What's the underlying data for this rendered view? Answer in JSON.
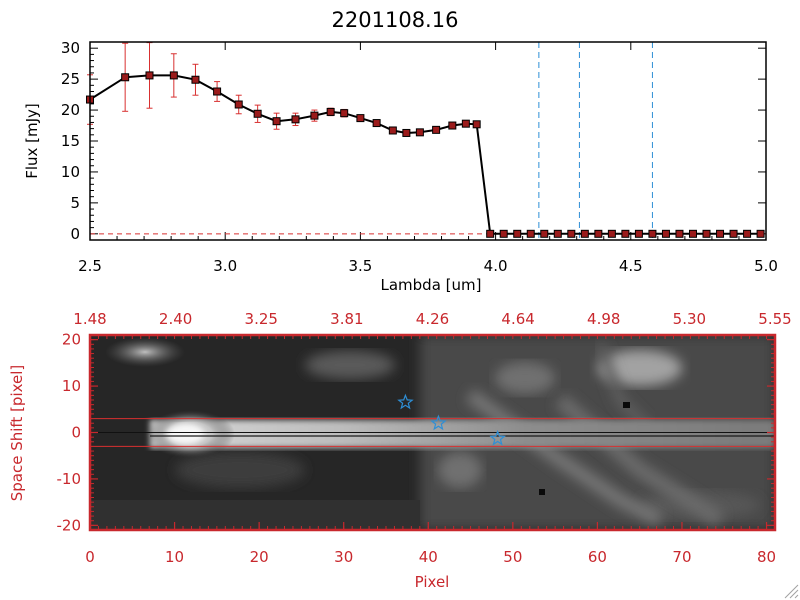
{
  "chart_data": [
    {
      "type": "line",
      "title": "2201108.16",
      "xlabel": "Lambda [um]",
      "ylabel": "Flux [mJy]",
      "xlim": [
        2.5,
        5.0
      ],
      "ylim": [
        -1,
        31
      ],
      "x_ticks": [
        "2.5",
        "3.0",
        "3.5",
        "4.0",
        "4.5",
        "5.0"
      ],
      "y_ticks": [
        "0",
        "5",
        "10",
        "15",
        "20",
        "25",
        "30"
      ],
      "grid": false,
      "series": [
        {
          "x": [
            2.5,
            2.63,
            2.72,
            2.81,
            2.89,
            2.97,
            3.05,
            3.12,
            3.19,
            3.26,
            3.33,
            3.39,
            3.44,
            3.5,
            3.56,
            3.62,
            3.67,
            3.72,
            3.78,
            3.84,
            3.89,
            3.93,
            3.98,
            4.03,
            4.08,
            4.13,
            4.18,
            4.23,
            4.28,
            4.33,
            4.38,
            4.43,
            4.48,
            4.53,
            4.58,
            4.63,
            4.68,
            4.73,
            4.78,
            4.83,
            4.88,
            4.93,
            4.98
          ],
          "y": [
            21.7,
            25.3,
            25.6,
            25.6,
            24.9,
            23.0,
            20.9,
            19.4,
            18.2,
            18.5,
            19.1,
            19.7,
            19.5,
            18.7,
            17.9,
            16.7,
            16.3,
            16.4,
            16.8,
            17.5,
            17.8,
            17.7,
            0.0,
            0.0,
            0.0,
            0.0,
            0.0,
            0.0,
            0.0,
            0.0,
            0.0,
            0.0,
            0.0,
            0.0,
            0.0,
            0.0,
            0.0,
            0.0,
            0.0,
            0.0,
            0.0,
            0.0,
            0.0
          ],
          "err": [
            4.0,
            5.5,
            5.3,
            3.5,
            2.5,
            1.6,
            1.5,
            1.4,
            1.3,
            1.0,
            0.9,
            0.6,
            0.6,
            0.5,
            0.5,
            0.5,
            0.4,
            0.4,
            0.4,
            0.4,
            0.4,
            0.4,
            0.2,
            0.2,
            0.2,
            0.2,
            0.2,
            0.2,
            0.2,
            0.2,
            0.2,
            0.2,
            0.2,
            0.2,
            0.2,
            0.2,
            0.2,
            0.2,
            0.2,
            0.2,
            0.2,
            0.2,
            0.2
          ]
        }
      ],
      "vlines": [
        4.16,
        4.31,
        4.58
      ],
      "hline": 0
    },
    {
      "type": "heatmap",
      "xlabel": "Pixel",
      "ylabel": "Space Shift [pixel]",
      "xlim": [
        0,
        81
      ],
      "ylim": [
        -21,
        21
      ],
      "x_ticks": [
        "0",
        "10",
        "20",
        "30",
        "40",
        "50",
        "60",
        "70",
        "80"
      ],
      "y_ticks": [
        "-20",
        "-10",
        "0",
        "10",
        "20"
      ],
      "top_ticks": [
        "1.48",
        "2.40",
        "3.25",
        "3.81",
        "4.26",
        "4.64",
        "4.98",
        "5.30",
        "5.55"
      ],
      "hlines": [
        3,
        -3,
        0
      ],
      "stars": [
        {
          "x": 37.3,
          "y": 6.5
        },
        {
          "x": 41.2,
          "y": 2.0
        },
        {
          "x": 48.2,
          "y": -1.3
        }
      ]
    }
  ]
}
